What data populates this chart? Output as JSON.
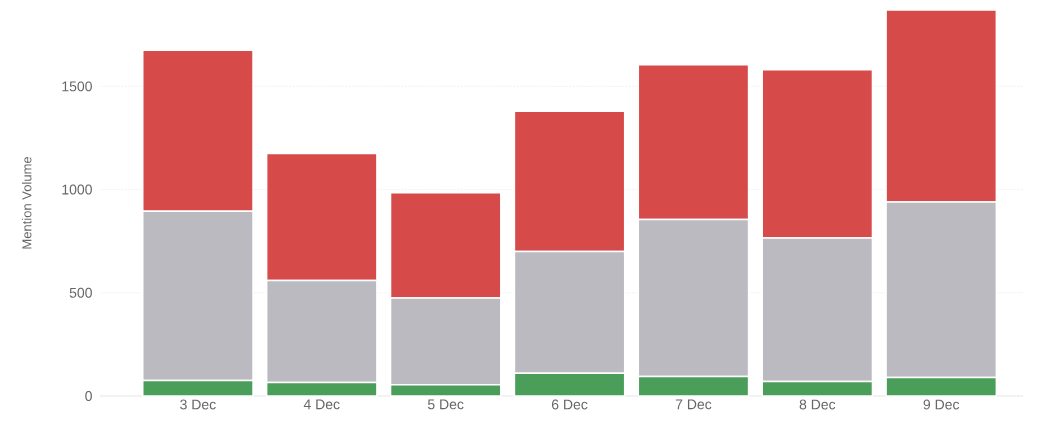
{
  "chart_data": {
    "type": "bar",
    "stacked": true,
    "ylabel": "Mention Volume",
    "categories": [
      "3 Dec",
      "4 Dec",
      "5 Dec",
      "6 Dec",
      "7 Dec",
      "8 Dec",
      "9 Dec"
    ],
    "series": [
      {
        "color": "#4a9e5a",
        "values": [
          75,
          65,
          55,
          110,
          95,
          70,
          90
        ]
      },
      {
        "color": "#bbbac0",
        "values": [
          820,
          495,
          420,
          590,
          760,
          695,
          850
        ]
      },
      {
        "color": "#d64a4a",
        "values": [
          780,
          615,
          510,
          680,
          750,
          815,
          930
        ]
      }
    ],
    "ylim": [
      0,
      1870
    ],
    "yticks": [
      0,
      500,
      1000,
      1500
    ],
    "grid": "y"
  }
}
